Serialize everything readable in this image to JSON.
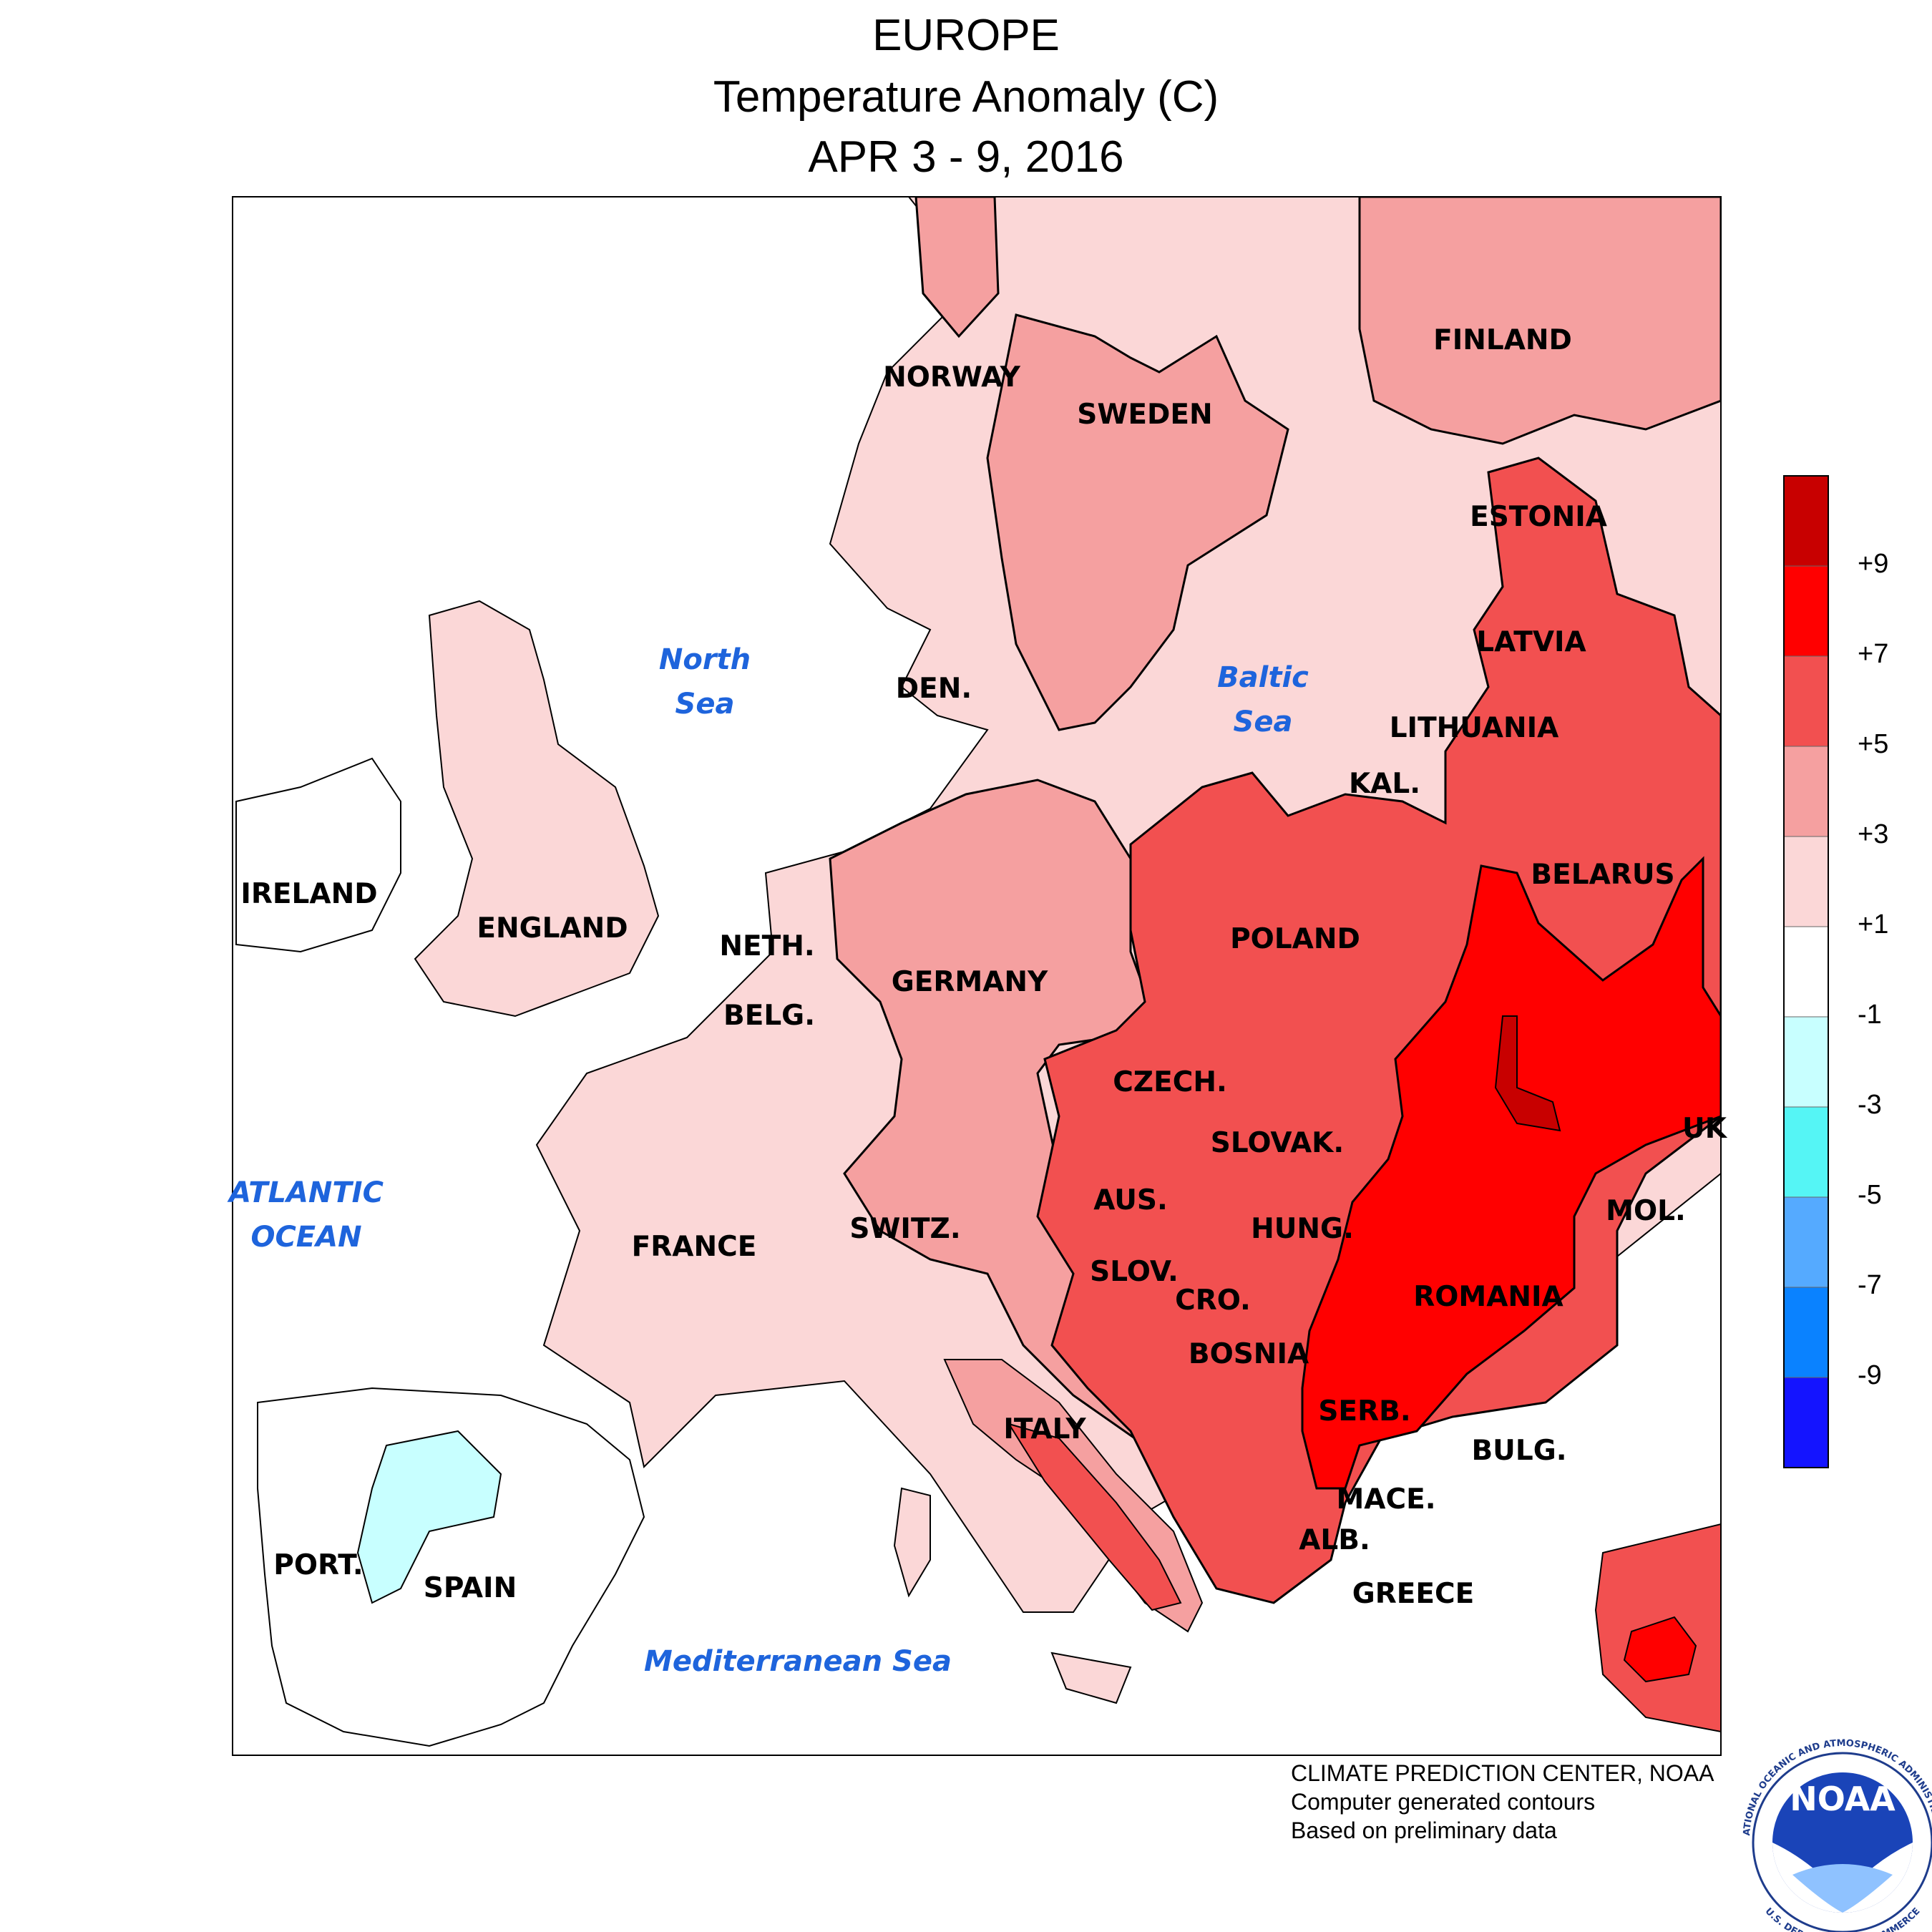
{
  "title": {
    "line1": "EUROPE",
    "line2": "Temperature Anomaly (C)",
    "line3": "APR 3 - 9, 2016"
  },
  "regions": {
    "norway": "NORWAY",
    "sweden": "SWEDEN",
    "finland": "FINLAND",
    "estonia": "ESTONIA",
    "latvia": "LATVIA",
    "lithuania": "LITHUANIA",
    "kaliningrad": "KAL.",
    "belarus": "BELARUS",
    "poland": "POLAND",
    "denmark": "DEN.",
    "ireland": "IRELAND",
    "england": "ENGLAND",
    "netherlands": "NETH.",
    "belgium": "BELG.",
    "germany": "GERMANY",
    "czech": "CZECH.",
    "slovakia": "SLOVAK.",
    "ukraine": "UK",
    "austria": "AUS.",
    "hungary": "HUNG.",
    "moldova": "MOL.",
    "switzerland": "SWITZ.",
    "france": "FRANCE",
    "slovenia": "SLOV.",
    "croatia": "CRO.",
    "romania": "ROMANIA",
    "bosnia": "BOSNIA",
    "serbia": "SERB.",
    "bulgaria": "BULG.",
    "italy": "ITALY",
    "macedonia": "MACE.",
    "albania": "ALB.",
    "greece": "GREECE",
    "portugal": "PORT.",
    "spain": "SPAIN"
  },
  "seas": {
    "north_1": "North",
    "north_2": "Sea",
    "baltic_1": "Baltic",
    "baltic_2": "Sea",
    "atlantic_1": "ATLANTIC",
    "atlantic_2": "OCEAN",
    "mediterranean": "Mediterranean Sea"
  },
  "legend": {
    "ticks": [
      "+9",
      "+7",
      "+5",
      "+3",
      "+1",
      "-1",
      "-3",
      "-5",
      "-7",
      "-9"
    ],
    "colors": [
      "#c80000",
      "#ff0000",
      "#f25050",
      "#f5a0a0",
      "#fbd7d7",
      "#ffffff",
      "#c8ffff",
      "#55f5f5",
      "#55aaff",
      "#0a82ff",
      "#1414ff"
    ]
  },
  "credits": {
    "line1": "CLIMATE PREDICTION CENTER, NOAA",
    "line2": "Computer generated contours",
    "line3": "Based on preliminary data"
  },
  "logo": {
    "text": "NOAA",
    "ring_top": "NATIONAL OCEANIC AND ATMOSPHERIC ADMINISTRATION",
    "ring_bottom": "U.S. DEPARTMENT OF COMMERCE"
  }
}
